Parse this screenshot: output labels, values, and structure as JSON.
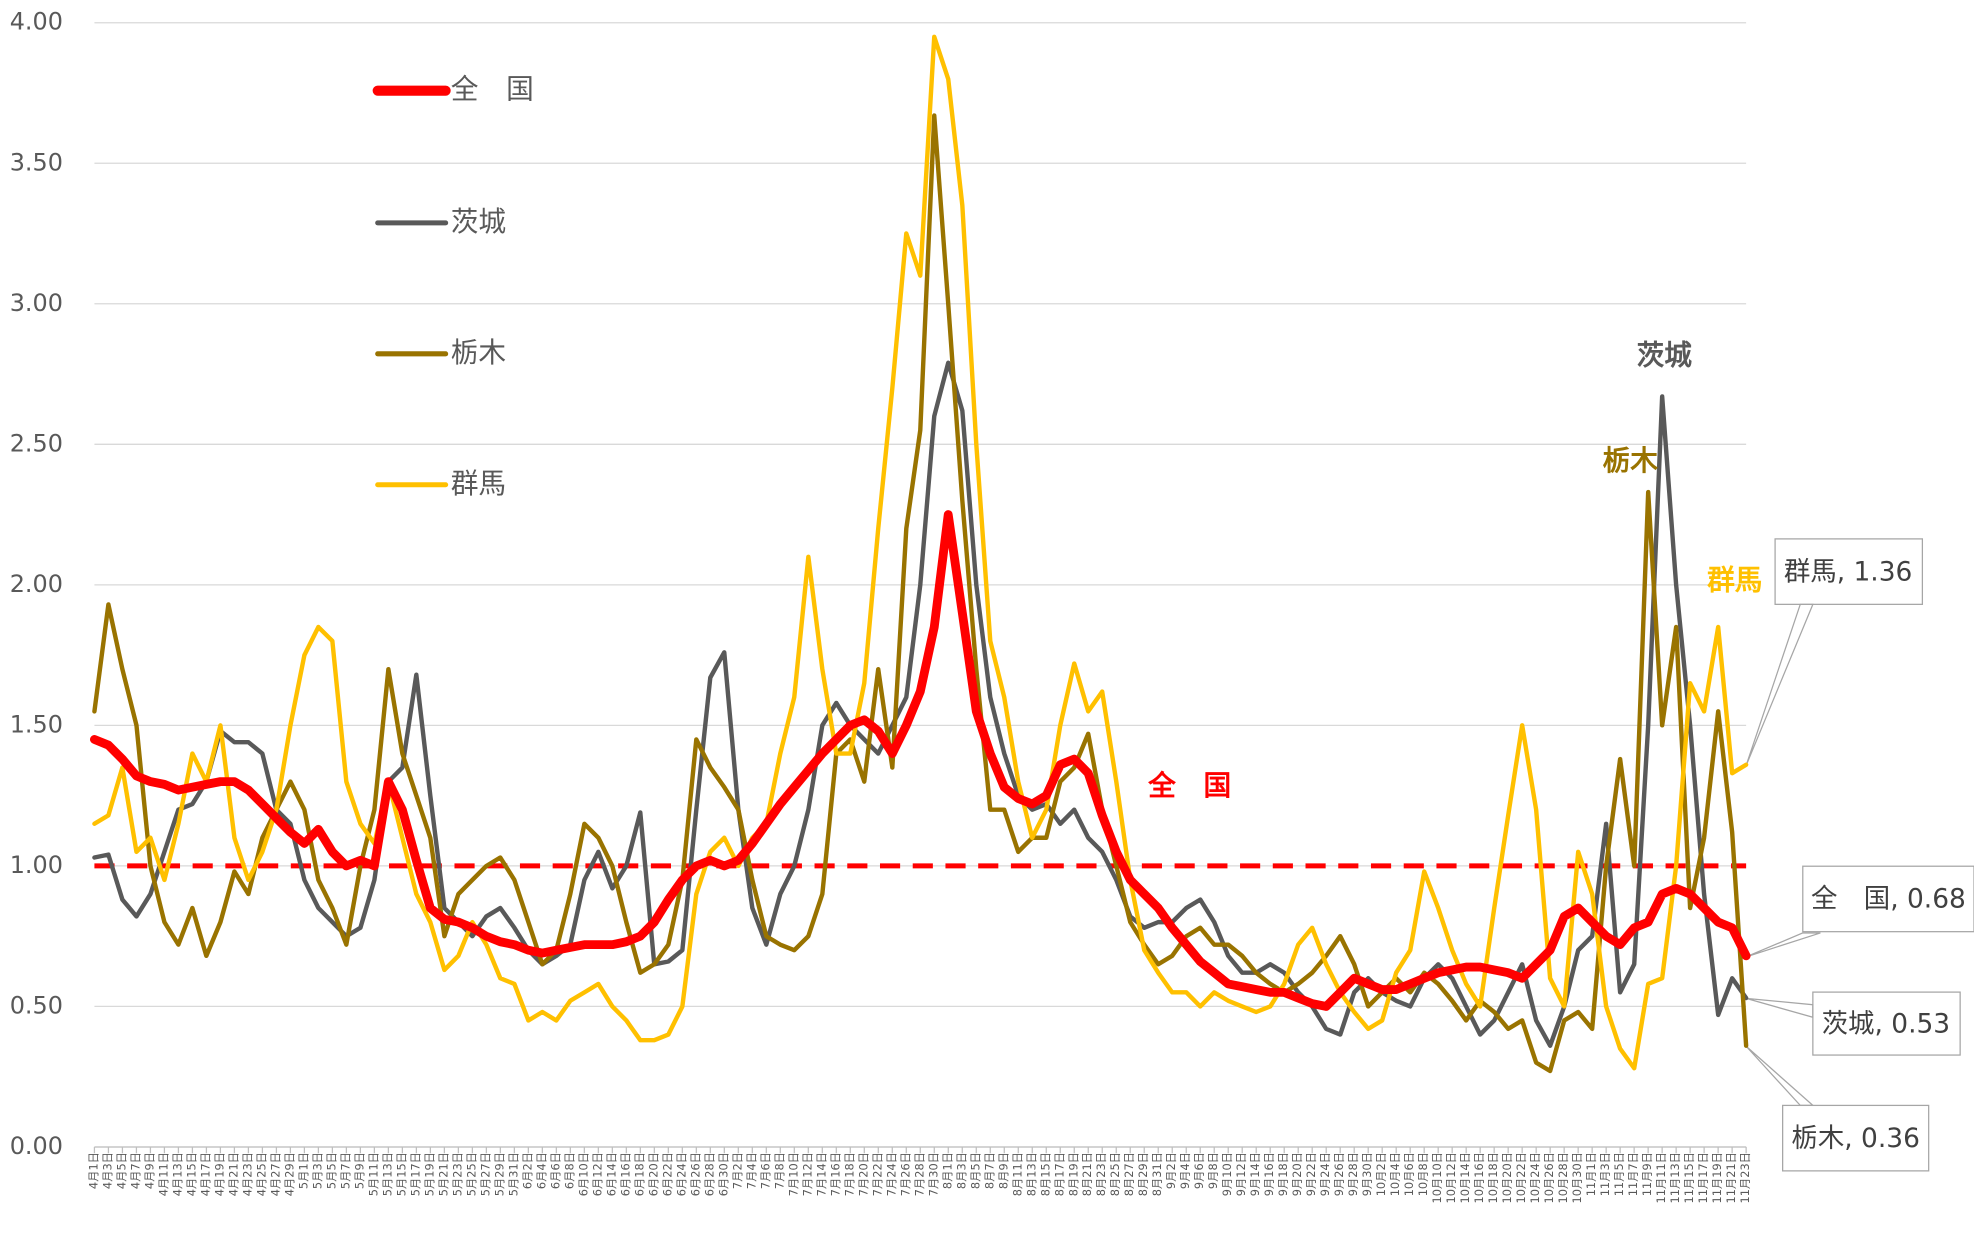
{
  "chart_data": {
    "type": "line",
    "categories": [
      "4月1日",
      "4月3日",
      "4月5日",
      "4月7日",
      "4月9日",
      "4月11日",
      "4月13日",
      "4月15日",
      "4月17日",
      "4月19日",
      "4月21日",
      "4月23日",
      "4月25日",
      "4月27日",
      "4月29日",
      "5月1日",
      "5月3日",
      "5月5日",
      "5月7日",
      "5月9日",
      "5月11日",
      "5月13日",
      "5月15日",
      "5月17日",
      "5月19日",
      "5月21日",
      "5月23日",
      "5月25日",
      "5月27日",
      "5月29日",
      "5月31日",
      "6月2日",
      "6月4日",
      "6月6日",
      "6月8日",
      "6月10日",
      "6月12日",
      "6月14日",
      "6月16日",
      "6月18日",
      "6月20日",
      "6月22日",
      "6月24日",
      "6月26日",
      "6月28日",
      "6月30日",
      "7月2日",
      "7月4日",
      "7月6日",
      "7月8日",
      "7月10日",
      "7月12日",
      "7月14日",
      "7月16日",
      "7月18日",
      "7月20日",
      "7月22日",
      "7月24日",
      "7月26日",
      "7月28日",
      "7月30日",
      "8月1日",
      "8月3日",
      "8月5日",
      "8月7日",
      "8月9日",
      "8月11日",
      "8月13日",
      "8月15日",
      "8月17日",
      "8月19日",
      "8月21日",
      "8月23日",
      "8月25日",
      "8月27日",
      "8月29日",
      "8月31日",
      "9月2日",
      "9月4日",
      "9月6日",
      "9月8日",
      "9月10日",
      "9月12日",
      "9月14日",
      "9月16日",
      "9月18日",
      "9月20日",
      "9月22日",
      "9月24日",
      "9月26日",
      "9月28日",
      "9月30日",
      "10月2日",
      "10月4日",
      "10月6日",
      "10月8日",
      "10月10日",
      "10月12日",
      "10月14日",
      "10月16日",
      "10月18日",
      "10月20日",
      "10月22日",
      "10月24日",
      "10月26日",
      "10月28日",
      "10月30日",
      "11月1日",
      "11月3日",
      "11月5日",
      "11月7日",
      "11月9日",
      "11月11日",
      "11月13日",
      "11月15日",
      "11月17日",
      "11月19日",
      "11月21日",
      "11月23日"
    ],
    "series": [
      {
        "name": "全　国",
        "color": "#ff0000",
        "values": [
          1.45,
          1.43,
          1.38,
          1.32,
          1.3,
          1.29,
          1.27,
          1.28,
          1.29,
          1.3,
          1.3,
          1.27,
          1.22,
          1.17,
          1.12,
          1.08,
          1.13,
          1.05,
          1.0,
          1.02,
          1.0,
          1.3,
          1.2,
          1.02,
          0.85,
          0.81,
          0.8,
          0.78,
          0.75,
          0.73,
          0.72,
          0.7,
          0.69,
          0.7,
          0.71,
          0.72,
          0.72,
          0.72,
          0.73,
          0.75,
          0.8,
          0.88,
          0.95,
          1.0,
          1.02,
          1.0,
          1.02,
          1.08,
          1.15,
          1.22,
          1.28,
          1.34,
          1.4,
          1.45,
          1.5,
          1.52,
          1.48,
          1.4,
          1.5,
          1.62,
          1.85,
          2.25,
          1.9,
          1.55,
          1.4,
          1.28,
          1.24,
          1.22,
          1.25,
          1.36,
          1.38,
          1.33,
          1.18,
          1.05,
          0.95,
          0.9,
          0.85,
          0.78,
          0.72,
          0.66,
          0.62,
          0.58,
          0.57,
          0.56,
          0.55,
          0.55,
          0.53,
          0.51,
          0.5,
          0.55,
          0.6,
          0.58,
          0.56,
          0.56,
          0.58,
          0.6,
          0.62,
          0.63,
          0.64,
          0.64,
          0.63,
          0.62,
          0.6,
          0.65,
          0.7,
          0.82,
          0.85,
          0.8,
          0.75,
          0.72,
          0.78,
          0.8,
          0.9,
          0.92,
          0.9,
          0.85,
          0.8,
          0.78,
          0.68
        ]
      },
      {
        "name": "茨城",
        "color": "#595959",
        "values": [
          1.03,
          1.04,
          0.88,
          0.82,
          0.9,
          1.05,
          1.2,
          1.22,
          1.3,
          1.48,
          1.44,
          1.44,
          1.4,
          1.2,
          1.15,
          0.95,
          0.85,
          0.8,
          0.75,
          0.78,
          0.95,
          1.3,
          1.35,
          1.68,
          1.25,
          0.85,
          0.8,
          0.75,
          0.82,
          0.85,
          0.78,
          0.7,
          0.65,
          0.68,
          0.72,
          0.95,
          1.05,
          0.92,
          1.0,
          1.19,
          0.65,
          0.66,
          0.7,
          1.2,
          1.67,
          1.76,
          1.2,
          0.85,
          0.72,
          0.9,
          1.0,
          1.2,
          1.5,
          1.58,
          1.5,
          1.45,
          1.4,
          1.5,
          1.6,
          2.0,
          2.6,
          2.79,
          2.62,
          2.0,
          1.6,
          1.4,
          1.25,
          1.2,
          1.22,
          1.15,
          1.2,
          1.1,
          1.05,
          0.95,
          0.82,
          0.78,
          0.8,
          0.8,
          0.85,
          0.88,
          0.8,
          0.68,
          0.62,
          0.62,
          0.65,
          0.62,
          0.55,
          0.5,
          0.42,
          0.4,
          0.55,
          0.6,
          0.55,
          0.52,
          0.5,
          0.6,
          0.65,
          0.6,
          0.5,
          0.4,
          0.45,
          0.55,
          0.65,
          0.45,
          0.36,
          0.5,
          0.7,
          0.75,
          1.15,
          0.55,
          0.65,
          1.5,
          2.67,
          2.0,
          1.5,
          0.9,
          0.47,
          0.6,
          0.53
        ]
      },
      {
        "name": "栃木",
        "color": "#997300",
        "values": [
          1.55,
          1.93,
          1.7,
          1.5,
          1.0,
          0.8,
          0.72,
          0.85,
          0.68,
          0.8,
          0.98,
          0.9,
          1.1,
          1.2,
          1.3,
          1.2,
          0.95,
          0.85,
          0.72,
          1.0,
          1.2,
          1.7,
          1.4,
          1.25,
          1.1,
          0.75,
          0.9,
          0.95,
          1.0,
          1.03,
          0.95,
          0.8,
          0.65,
          0.7,
          0.9,
          1.15,
          1.1,
          1.0,
          0.8,
          0.62,
          0.65,
          0.72,
          0.95,
          1.45,
          1.35,
          1.28,
          1.2,
          0.95,
          0.75,
          0.72,
          0.7,
          0.75,
          0.9,
          1.4,
          1.45,
          1.3,
          1.7,
          1.35,
          2.2,
          2.55,
          3.67,
          3.0,
          2.3,
          1.7,
          1.2,
          1.2,
          1.05,
          1.1,
          1.1,
          1.3,
          1.35,
          1.47,
          1.2,
          1.0,
          0.8,
          0.72,
          0.65,
          0.68,
          0.75,
          0.78,
          0.72,
          0.72,
          0.68,
          0.62,
          0.58,
          0.55,
          0.58,
          0.62,
          0.68,
          0.75,
          0.65,
          0.5,
          0.55,
          0.6,
          0.55,
          0.62,
          0.58,
          0.52,
          0.45,
          0.52,
          0.48,
          0.42,
          0.45,
          0.3,
          0.27,
          0.45,
          0.48,
          0.42,
          1.0,
          1.38,
          1.0,
          2.33,
          1.5,
          1.85,
          0.85,
          1.1,
          1.55,
          1.12,
          0.36
        ]
      },
      {
        "name": "群馬",
        "color": "#ffc000",
        "values": [
          1.15,
          1.18,
          1.35,
          1.05,
          1.1,
          0.95,
          1.15,
          1.4,
          1.3,
          1.5,
          1.1,
          0.95,
          1.05,
          1.2,
          1.5,
          1.75,
          1.85,
          1.8,
          1.3,
          1.15,
          1.08,
          1.3,
          1.1,
          0.9,
          0.8,
          0.63,
          0.68,
          0.8,
          0.72,
          0.6,
          0.58,
          0.45,
          0.48,
          0.45,
          0.52,
          0.55,
          0.58,
          0.5,
          0.45,
          0.38,
          0.38,
          0.4,
          0.5,
          0.9,
          1.05,
          1.1,
          1.0,
          1.1,
          1.15,
          1.4,
          1.6,
          2.1,
          1.7,
          1.4,
          1.4,
          1.65,
          2.2,
          2.7,
          3.25,
          3.1,
          3.95,
          3.8,
          3.35,
          2.5,
          1.8,
          1.6,
          1.3,
          1.1,
          1.2,
          1.5,
          1.72,
          1.55,
          1.62,
          1.3,
          0.95,
          0.7,
          0.62,
          0.55,
          0.55,
          0.5,
          0.55,
          0.52,
          0.5,
          0.48,
          0.5,
          0.58,
          0.72,
          0.78,
          0.65,
          0.55,
          0.48,
          0.42,
          0.45,
          0.62,
          0.7,
          0.98,
          0.85,
          0.7,
          0.58,
          0.5,
          0.85,
          1.18,
          1.5,
          1.2,
          0.6,
          0.5,
          1.05,
          0.9,
          0.5,
          0.35,
          0.28,
          0.58,
          0.6,
          1.0,
          1.65,
          1.55,
          1.85,
          1.33,
          1.36
        ]
      }
    ],
    "reference_line": {
      "value": 1,
      "color": "#ff0000"
    },
    "ylim": [
      0,
      4
    ],
    "yticks": [
      {
        "value": 0,
        "label": "0.00"
      },
      {
        "value": 0.5,
        "label": "0.50"
      },
      {
        "value": 1,
        "label": "1.00"
      },
      {
        "value": 1.5,
        "label": "1.50"
      },
      {
        "value": 2,
        "label": "2.00"
      },
      {
        "value": 2.5,
        "label": "2.50"
      },
      {
        "value": 3,
        "label": "3.00"
      },
      {
        "value": 3.5,
        "label": "3.50"
      },
      {
        "value": 4,
        "label": "4.00"
      }
    ],
    "grid": true,
    "legend": "upper left",
    "annotations": [
      {
        "text": "全　国",
        "color": "#ff0000"
      },
      {
        "text": "茨城",
        "color": "#595959"
      },
      {
        "text": "栃木",
        "color": "#997300"
      },
      {
        "text": "群馬",
        "color": "#ffc000"
      }
    ],
    "callouts": [
      "群馬, 1.36",
      "全　国, 0.68",
      "茨城, 0.53",
      "栃木, 0.36"
    ]
  }
}
